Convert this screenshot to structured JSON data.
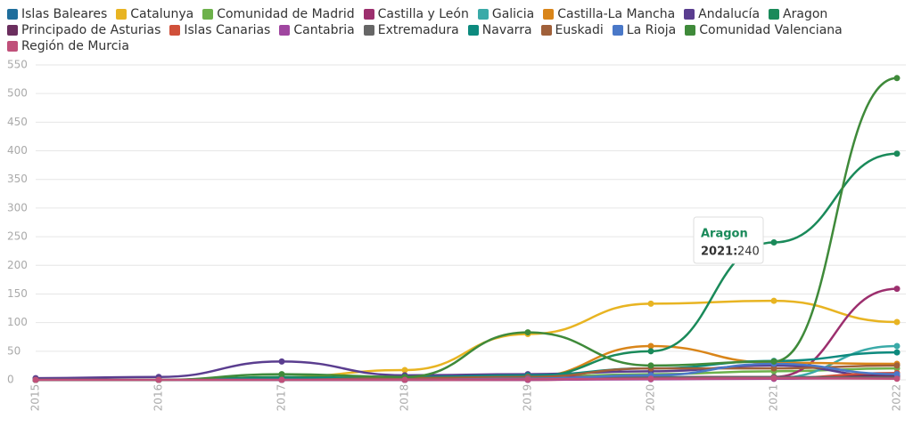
{
  "chart_data": {
    "type": "line",
    "x": [
      "2015",
      "2016",
      "2017",
      "2018",
      "2019",
      "2020",
      "2021",
      "2022"
    ],
    "ylim": [
      0,
      550
    ],
    "yticks": [
      0,
      50,
      100,
      150,
      200,
      250,
      300,
      350,
      400,
      450,
      500,
      550
    ],
    "grid": true,
    "series": [
      {
        "name": "Islas Baleares",
        "color": "#1f6e9c",
        "values": [
          0,
          0,
          0,
          0,
          2,
          3,
          4,
          6
        ]
      },
      {
        "name": "Catalunya",
        "color": "#e8b422",
        "values": [
          0,
          0,
          5,
          17,
          80,
          133,
          138,
          101
        ]
      },
      {
        "name": "Comunidad de Madrid",
        "color": "#6db14b",
        "values": [
          0,
          0,
          3,
          2,
          5,
          10,
          15,
          20
        ]
      },
      {
        "name": "Castilla y León",
        "color": "#9c2f6e",
        "values": [
          0,
          0,
          0,
          0,
          5,
          5,
          5,
          159
        ]
      },
      {
        "name": "Galicia",
        "color": "#3aaaa8",
        "values": [
          0,
          0,
          0,
          0,
          3,
          5,
          3,
          59
        ]
      },
      {
        "name": "Castilla-La Mancha",
        "color": "#d98519",
        "values": [
          0,
          0,
          0,
          0,
          5,
          59,
          30,
          28
        ]
      },
      {
        "name": "Andalucía",
        "color": "#5a3d8f",
        "values": [
          3,
          5,
          32,
          8,
          10,
          15,
          25,
          5
        ]
      },
      {
        "name": "Aragon",
        "color": "#1a8a5a",
        "values": [
          0,
          0,
          5,
          3,
          5,
          50,
          240,
          395
        ]
      },
      {
        "name": "Principado de Asturias",
        "color": "#6b2e5e",
        "values": [
          0,
          0,
          0,
          0,
          0,
          3,
          2,
          8
        ]
      },
      {
        "name": "Islas Canarias",
        "color": "#d0503a",
        "values": [
          0,
          0,
          0,
          0,
          0,
          2,
          3,
          12
        ]
      },
      {
        "name": "Cantabria",
        "color": "#a046a0",
        "values": [
          0,
          0,
          0,
          0,
          0,
          1,
          2,
          3
        ]
      },
      {
        "name": "Extremadura",
        "color": "#666666",
        "values": [
          0,
          0,
          0,
          0,
          2,
          4,
          5,
          4
        ]
      },
      {
        "name": "Navarra",
        "color": "#0d8a7e",
        "values": [
          0,
          0,
          2,
          5,
          8,
          20,
          33,
          48
        ]
      },
      {
        "name": "Euskadi",
        "color": "#a0603a",
        "values": [
          0,
          0,
          0,
          3,
          5,
          20,
          20,
          25
        ]
      },
      {
        "name": "La Rioja",
        "color": "#4a78c8",
        "values": [
          0,
          0,
          0,
          0,
          2,
          8,
          28,
          10
        ]
      },
      {
        "name": "Comunidad Valenciana",
        "color": "#3f8a3a",
        "values": [
          0,
          0,
          10,
          5,
          83,
          25,
          32,
          527
        ]
      },
      {
        "name": "Región de Murcia",
        "color": "#c0507a",
        "values": [
          0,
          0,
          0,
          0,
          1,
          2,
          3,
          2
        ]
      }
    ],
    "tooltip": {
      "label": "2021:"
    }
  }
}
